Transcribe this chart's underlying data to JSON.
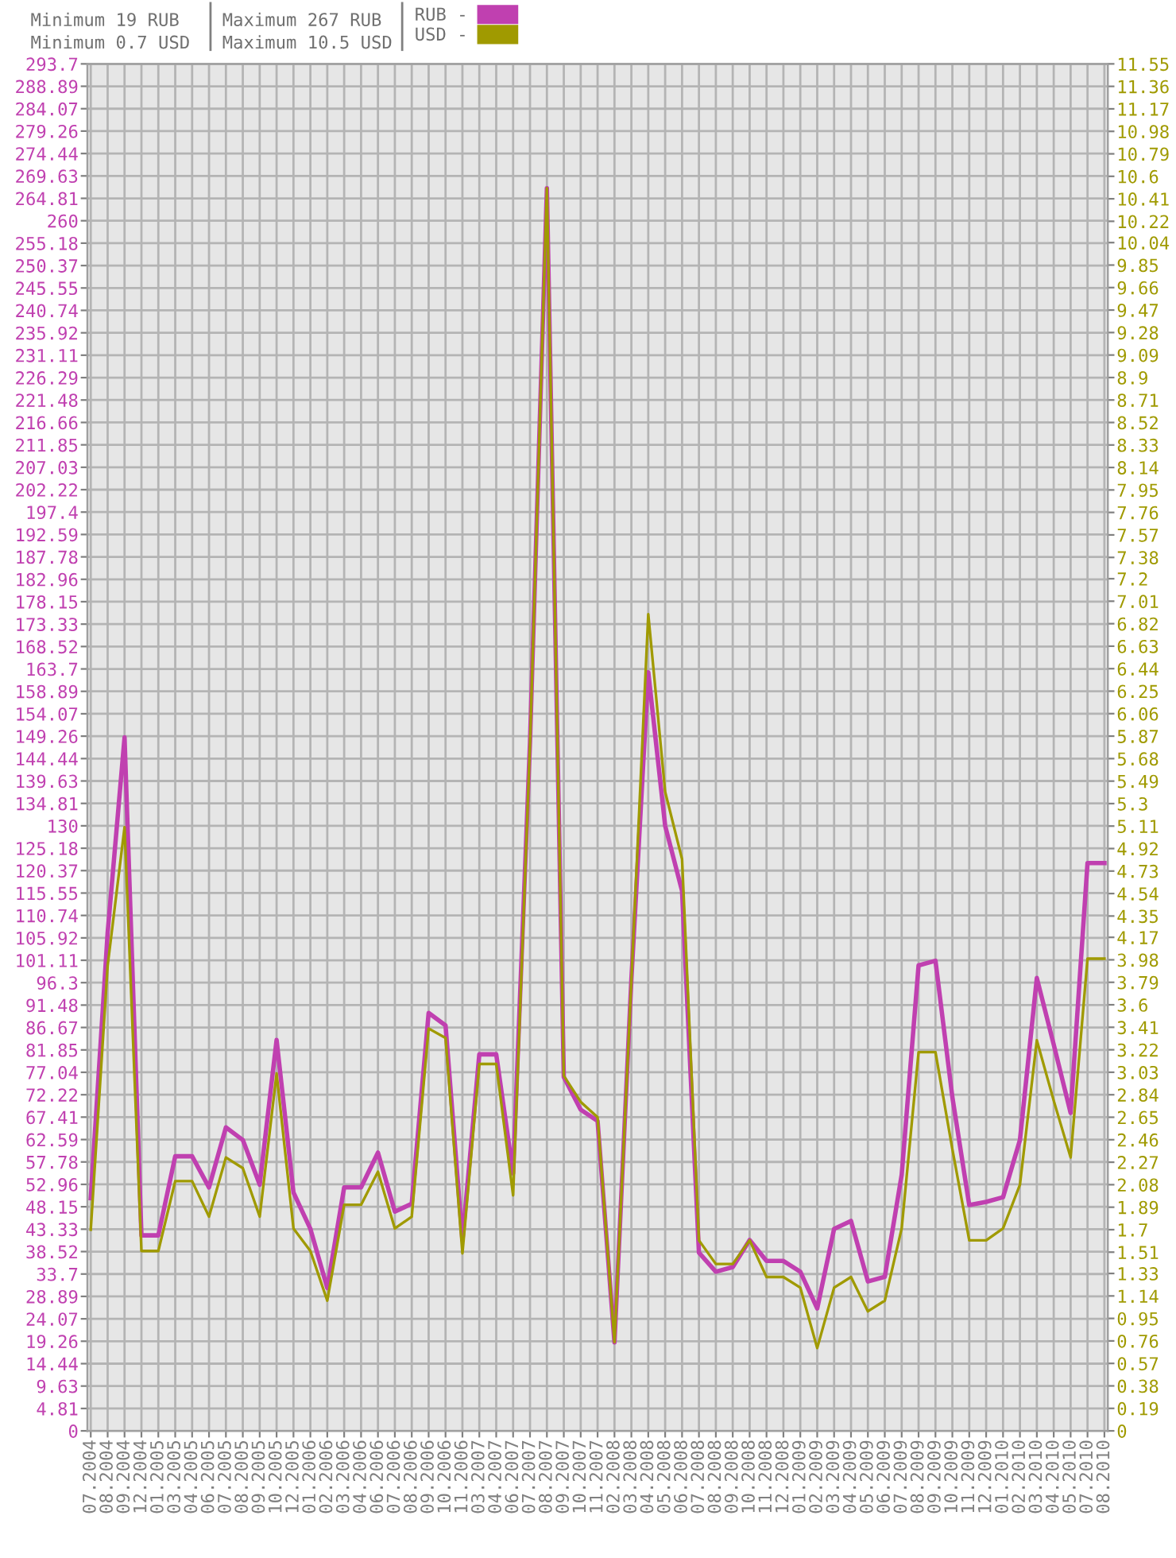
{
  "chart_data": {
    "type": "line",
    "annotations": [
      "Minimum 19 RUB",
      "Minimum 0.7 USD",
      "Maximum 267 RUB",
      "Maximum 10.5 USD"
    ],
    "categories": [
      "07.2004",
      "08.2004",
      "09.2004",
      "12.2004",
      "01.2005",
      "03.2005",
      "04.2005",
      "06.2005",
      "07.2005",
      "08.2005",
      "09.2005",
      "10.2005",
      "12.2005",
      "01.2006",
      "02.2006",
      "03.2006",
      "04.2006",
      "06.2006",
      "07.2006",
      "08.2006",
      "09.2006",
      "10.2006",
      "11.2006",
      "03.2007",
      "04.2007",
      "06.2007",
      "07.2007",
      "08.2007",
      "09.2007",
      "10.2007",
      "11.2007",
      "02.2008",
      "03.2008",
      "04.2008",
      "05.2008",
      "06.2008",
      "07.2008",
      "08.2008",
      "09.2008",
      "10.2008",
      "11.2008",
      "12.2008",
      "01.2009",
      "02.2009",
      "03.2009",
      "04.2009",
      "05.2009",
      "06.2009",
      "07.2009",
      "08.2009",
      "09.2009",
      "10.2009",
      "11.2009",
      "12.2009",
      "01.2010",
      "02.2010",
      "03.2010",
      "04.2010",
      "05.2010",
      "07.2010",
      "08.2010"
    ],
    "series": [
      {
        "name": "RUB -",
        "color": "#c040b0",
        "values": [
          50,
          107,
          149,
          42,
          42,
          59,
          59,
          52.3,
          65.2,
          62.5,
          52.9,
          84,
          51.2,
          43.4,
          30.7,
          52.3,
          52.3,
          59.8,
          47.1,
          48.8,
          89.8,
          87.1,
          41,
          80.9,
          80.9,
          55.3,
          148,
          267,
          76,
          69,
          66.6,
          19,
          97,
          163,
          130,
          116,
          38.3,
          34.2,
          35.2,
          41,
          36.5,
          36.5,
          34.2,
          26.3,
          43.4,
          45.1,
          32.1,
          33.1,
          55,
          100,
          101,
          71.7,
          48.5,
          49.2,
          50.2,
          62.5,
          97.3,
          83,
          68.3,
          122,
          122
        ]
      },
      {
        "name": "USD -",
        "color": "#a09a00",
        "axis": "y2",
        "values": [
          1.7,
          3.93,
          5.1,
          1.52,
          1.52,
          2.11,
          2.11,
          1.81,
          2.31,
          2.22,
          1.81,
          3.02,
          1.71,
          1.52,
          1.1,
          1.91,
          1.91,
          2.19,
          1.71,
          1.81,
          3.4,
          3.32,
          1.5,
          3.1,
          3.1,
          1.99,
          5.8,
          10.5,
          3.0,
          2.78,
          2.65,
          0.75,
          3.8,
          6.9,
          5.4,
          4.83,
          1.61,
          1.41,
          1.41,
          1.61,
          1.3,
          1.3,
          1.21,
          0.7,
          1.21,
          1.3,
          1.01,
          1.1,
          1.71,
          3.2,
          3.2,
          2.38,
          1.61,
          1.61,
          1.71,
          2.08,
          3.3,
          2.79,
          2.31,
          3.99,
          3.99
        ]
      }
    ],
    "ylim": [
      0,
      293.7
    ],
    "yticks": [
      0,
      4.81,
      9.63,
      14.44,
      19.26,
      24.07,
      28.89,
      33.7,
      38.52,
      43.33,
      48.15,
      52.96,
      57.78,
      62.59,
      67.41,
      72.22,
      77.04,
      81.85,
      86.67,
      91.48,
      96.3,
      101.11,
      105.92,
      110.74,
      115.55,
      120.37,
      125.18,
      130,
      134.81,
      139.63,
      144.44,
      149.26,
      154.07,
      158.89,
      163.7,
      168.52,
      173.33,
      178.15,
      182.96,
      187.78,
      192.59,
      197.4,
      202.22,
      207.03,
      211.85,
      216.66,
      221.48,
      226.29,
      231.11,
      235.92,
      240.74,
      245.55,
      250.37,
      255.18,
      260,
      264.81,
      269.63,
      274.44,
      279.26,
      284.07,
      288.89,
      293.7
    ],
    "y2lim": [
      0,
      11.55
    ],
    "y2ticks": [
      0,
      0.19,
      0.38,
      0.57,
      0.76,
      0.95,
      1.14,
      1.33,
      1.51,
      1.7,
      1.89,
      2.08,
      2.27,
      2.46,
      2.65,
      2.84,
      3.03,
      3.22,
      3.41,
      3.6,
      3.79,
      3.98,
      4.17,
      4.35,
      4.54,
      4.73,
      4.92,
      5.11,
      5.3,
      5.49,
      5.68,
      5.87,
      6.06,
      6.25,
      6.44,
      6.63,
      6.82,
      7.01,
      7.2,
      7.38,
      7.57,
      7.76,
      7.95,
      8.14,
      8.33,
      8.52,
      8.71,
      8.9,
      9.09,
      9.28,
      9.47,
      9.66,
      9.85,
      10.04,
      10.22,
      10.41,
      10.6,
      10.79,
      10.98,
      11.17,
      11.36,
      11.55
    ],
    "grid": true,
    "legend": "top",
    "marker": "none",
    "line_style": "solid"
  }
}
